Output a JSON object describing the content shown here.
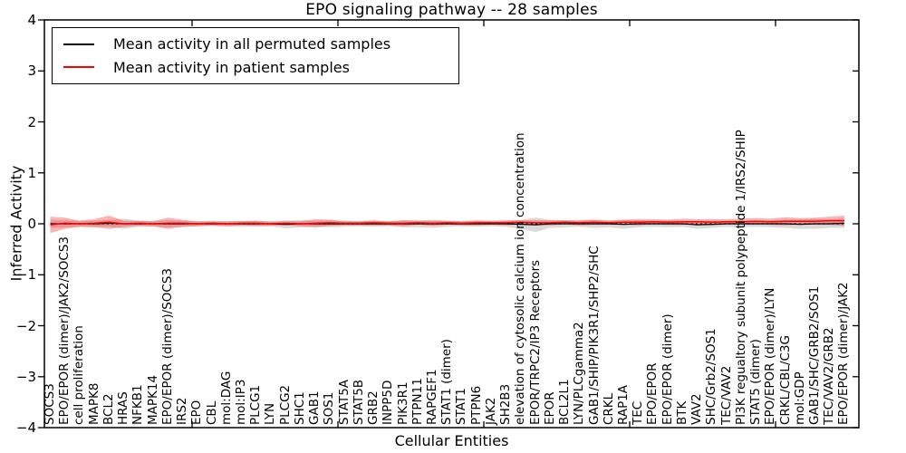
{
  "title": "EPO signaling pathway -- 28 samples",
  "axes": {
    "ylabel": "Inferred Activity",
    "xlabel": "Cellular Entities",
    "ytick_labels": [
      "4",
      "3",
      "2",
      "1",
      "0",
      "−1",
      "−2",
      "−3",
      "−4"
    ]
  },
  "legend": {
    "items": [
      {
        "label": "Mean activity in all permuted samples",
        "color": "#000000"
      },
      {
        "label": "Mean activity in patient samples",
        "color": "#ff0000"
      }
    ]
  },
  "chart_data": {
    "type": "line",
    "title": "EPO signaling pathway -- 28 samples",
    "xlabel": "Cellular Entities",
    "ylabel": "Inferred Activity",
    "ylim": [
      -4,
      4
    ],
    "yticks": [
      4,
      3,
      2,
      1,
      0,
      -1,
      -2,
      -3,
      -4
    ],
    "grid": false,
    "legend_position": "upper left",
    "zero_line": {
      "style": "dotted",
      "color": "#000000",
      "y": 0
    },
    "categories": [
      "SOCS3",
      "EPO/EPOR (dimer)/JAK2/SOCS3",
      "cell proliferation",
      "MAPK8",
      "BCL2",
      "HRAS",
      "NFKB1",
      "MAPK14",
      "EPO/EPOR (dimer)/SOCS3",
      "IRS2",
      "EPO",
      "CBL",
      "mol:DAG",
      "mol:IP3",
      "PLCG1",
      "LYN",
      "PLCG2",
      "SHC1",
      "GAB1",
      "SOS1",
      "STAT5A",
      "STAT5B",
      "GRB2",
      "INPP5D",
      "PIK3R1",
      "PTPN11",
      "RAPGEF1",
      "STAT1 (dimer)",
      "STAT1",
      "PTPN6",
      "JAK2",
      "SH2B3",
      "elevation of cytosolic calcium ion concentration",
      "EPOR/TRPC2/IP3 Receptors",
      "EPOR",
      "BCL2L1",
      "LYN/PLCgamma2",
      "GAB1/SHIP/PIK3R1/SHP2/SHC",
      "CRKL",
      "RAP1A",
      "TEC",
      "EPO/EPOR",
      "EPO/EPOR (dimer)",
      "BTK",
      "VAV2",
      "SHC/Grb2/SOS1",
      "TEC/VAV2",
      "PI3K regualtory subunit polypeptide 1/IRS2/SHIP",
      "STAT5 (dimer)",
      "EPO/EPOR (dimer)/LYN",
      "CRKL/CBL/C3G",
      "mol:GDP",
      "GAB1/SHC/GRB2/SOS1",
      "TEC/VAV2/GRB2",
      "EPO/EPOR (dimer)/JAK2"
    ],
    "series": [
      {
        "name": "Mean activity in all permuted samples",
        "color": "#000000",
        "band_color": "#000000",
        "band_opacity": 0.15,
        "values": [
          0.0,
          0.0,
          0.0,
          0.0,
          0.01,
          0.0,
          0.0,
          0.0,
          0.0,
          0.0,
          0.0,
          0.0,
          0.0,
          0.0,
          0.0,
          0.0,
          -0.01,
          0.0,
          0.0,
          0.0,
          0.0,
          0.0,
          0.0,
          0.0,
          0.0,
          0.0,
          0.0,
          0.0,
          0.0,
          0.0,
          0.0,
          0.0,
          -0.01,
          -0.02,
          0.0,
          0.0,
          0.0,
          0.0,
          0.0,
          -0.01,
          0.0,
          0.0,
          0.0,
          0.0,
          -0.02,
          -0.01,
          0.0,
          0.0,
          0.0,
          0.0,
          0.0,
          -0.01,
          0.0,
          0.0,
          0.01
        ],
        "band_halfwidth": [
          0.08,
          0.07,
          0.06,
          0.06,
          0.07,
          0.1,
          0.06,
          0.06,
          0.07,
          0.06,
          0.05,
          0.05,
          0.05,
          0.06,
          0.06,
          0.05,
          0.08,
          0.07,
          0.06,
          0.07,
          0.06,
          0.05,
          0.06,
          0.05,
          0.07,
          0.07,
          0.08,
          0.06,
          0.05,
          0.06,
          0.05,
          0.06,
          0.09,
          0.14,
          0.08,
          0.07,
          0.06,
          0.08,
          0.07,
          0.09,
          0.07,
          0.06,
          0.07,
          0.06,
          0.08,
          0.07,
          0.06,
          0.07,
          0.06,
          0.07,
          0.08,
          0.09,
          0.1,
          0.08,
          0.09
        ]
      },
      {
        "name": "Mean activity in patient samples",
        "color": "#ff0000",
        "band_color": "#ff0000",
        "band_opacity": 0.3,
        "values": [
          -0.02,
          0.01,
          0.0,
          0.01,
          0.03,
          0.0,
          0.01,
          0.0,
          0.01,
          0.01,
          0.0,
          0.01,
          0.0,
          0.01,
          0.01,
          0.0,
          0.01,
          0.0,
          0.01,
          0.02,
          0.01,
          0.01,
          0.02,
          0.01,
          0.01,
          0.02,
          0.01,
          0.02,
          0.01,
          0.02,
          0.02,
          0.02,
          0.03,
          0.02,
          0.02,
          0.03,
          0.02,
          0.03,
          0.02,
          0.03,
          0.03,
          0.04,
          0.03,
          0.04,
          0.04,
          0.03,
          0.04,
          0.04,
          0.05,
          0.04,
          0.05,
          0.05,
          0.05,
          0.06,
          0.06
        ],
        "band_halfwidth": [
          0.16,
          0.11,
          0.06,
          0.08,
          0.13,
          0.06,
          0.05,
          0.05,
          0.11,
          0.07,
          0.05,
          0.04,
          0.05,
          0.04,
          0.05,
          0.04,
          0.04,
          0.05,
          0.08,
          0.06,
          0.04,
          0.04,
          0.05,
          0.04,
          0.06,
          0.04,
          0.05,
          0.04,
          0.04,
          0.05,
          0.04,
          0.05,
          0.04,
          0.05,
          0.05,
          0.04,
          0.05,
          0.05,
          0.04,
          0.05,
          0.06,
          0.05,
          0.05,
          0.06,
          0.05,
          0.06,
          0.05,
          0.06,
          0.06,
          0.06,
          0.08,
          0.06,
          0.07,
          0.08,
          0.1
        ]
      }
    ]
  }
}
